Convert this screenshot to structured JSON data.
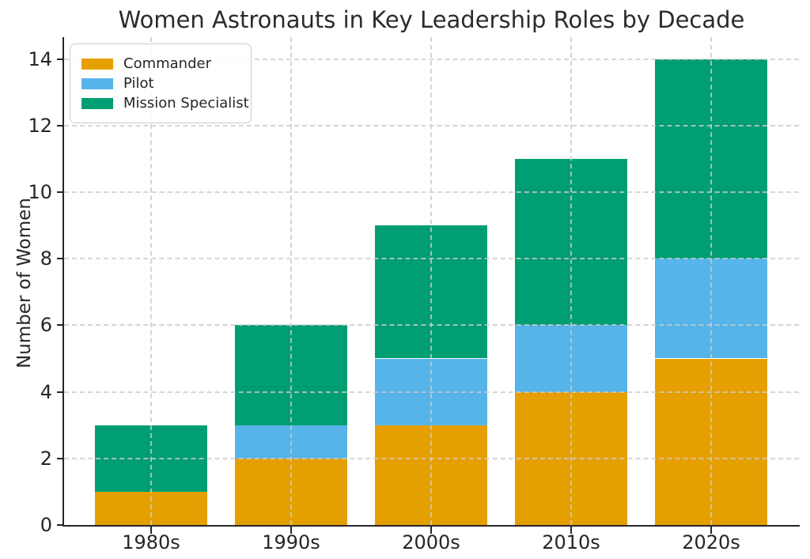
{
  "chart_data": {
    "type": "bar",
    "stacked": true,
    "title": "Women Astronauts in Key Leadership Roles by Decade",
    "xlabel": "",
    "ylabel": "Number of Women",
    "categories": [
      "1980s",
      "1990s",
      "2000s",
      "2010s",
      "2020s"
    ],
    "series": [
      {
        "name": "Commander",
        "color": "#E69F00",
        "values": [
          1,
          2,
          3,
          4,
          5
        ]
      },
      {
        "name": "Pilot",
        "color": "#56B4E9",
        "values": [
          0,
          1,
          2,
          2,
          3
        ]
      },
      {
        "name": "Mission Specialist",
        "color": "#009E73",
        "values": [
          2,
          3,
          4,
          5,
          6
        ]
      }
    ],
    "totals": [
      3,
      6,
      9,
      11,
      14
    ],
    "yticks": [
      0,
      2,
      4,
      6,
      8,
      10,
      12,
      14
    ],
    "ylim": [
      0,
      14.65
    ],
    "grid": "dashed, horizontal at yticks and vertical at category centers, drawn above bars",
    "legend_position": "upper-left",
    "legend_entries": [
      "Commander",
      "Pilot",
      "Mission Specialist"
    ]
  },
  "colors": {
    "commander": "#E69F00",
    "pilot": "#56B4E9",
    "mission_specialist": "#009E73",
    "gridline": "#cccccc",
    "axis": "#262626",
    "background": "#ffffff"
  }
}
